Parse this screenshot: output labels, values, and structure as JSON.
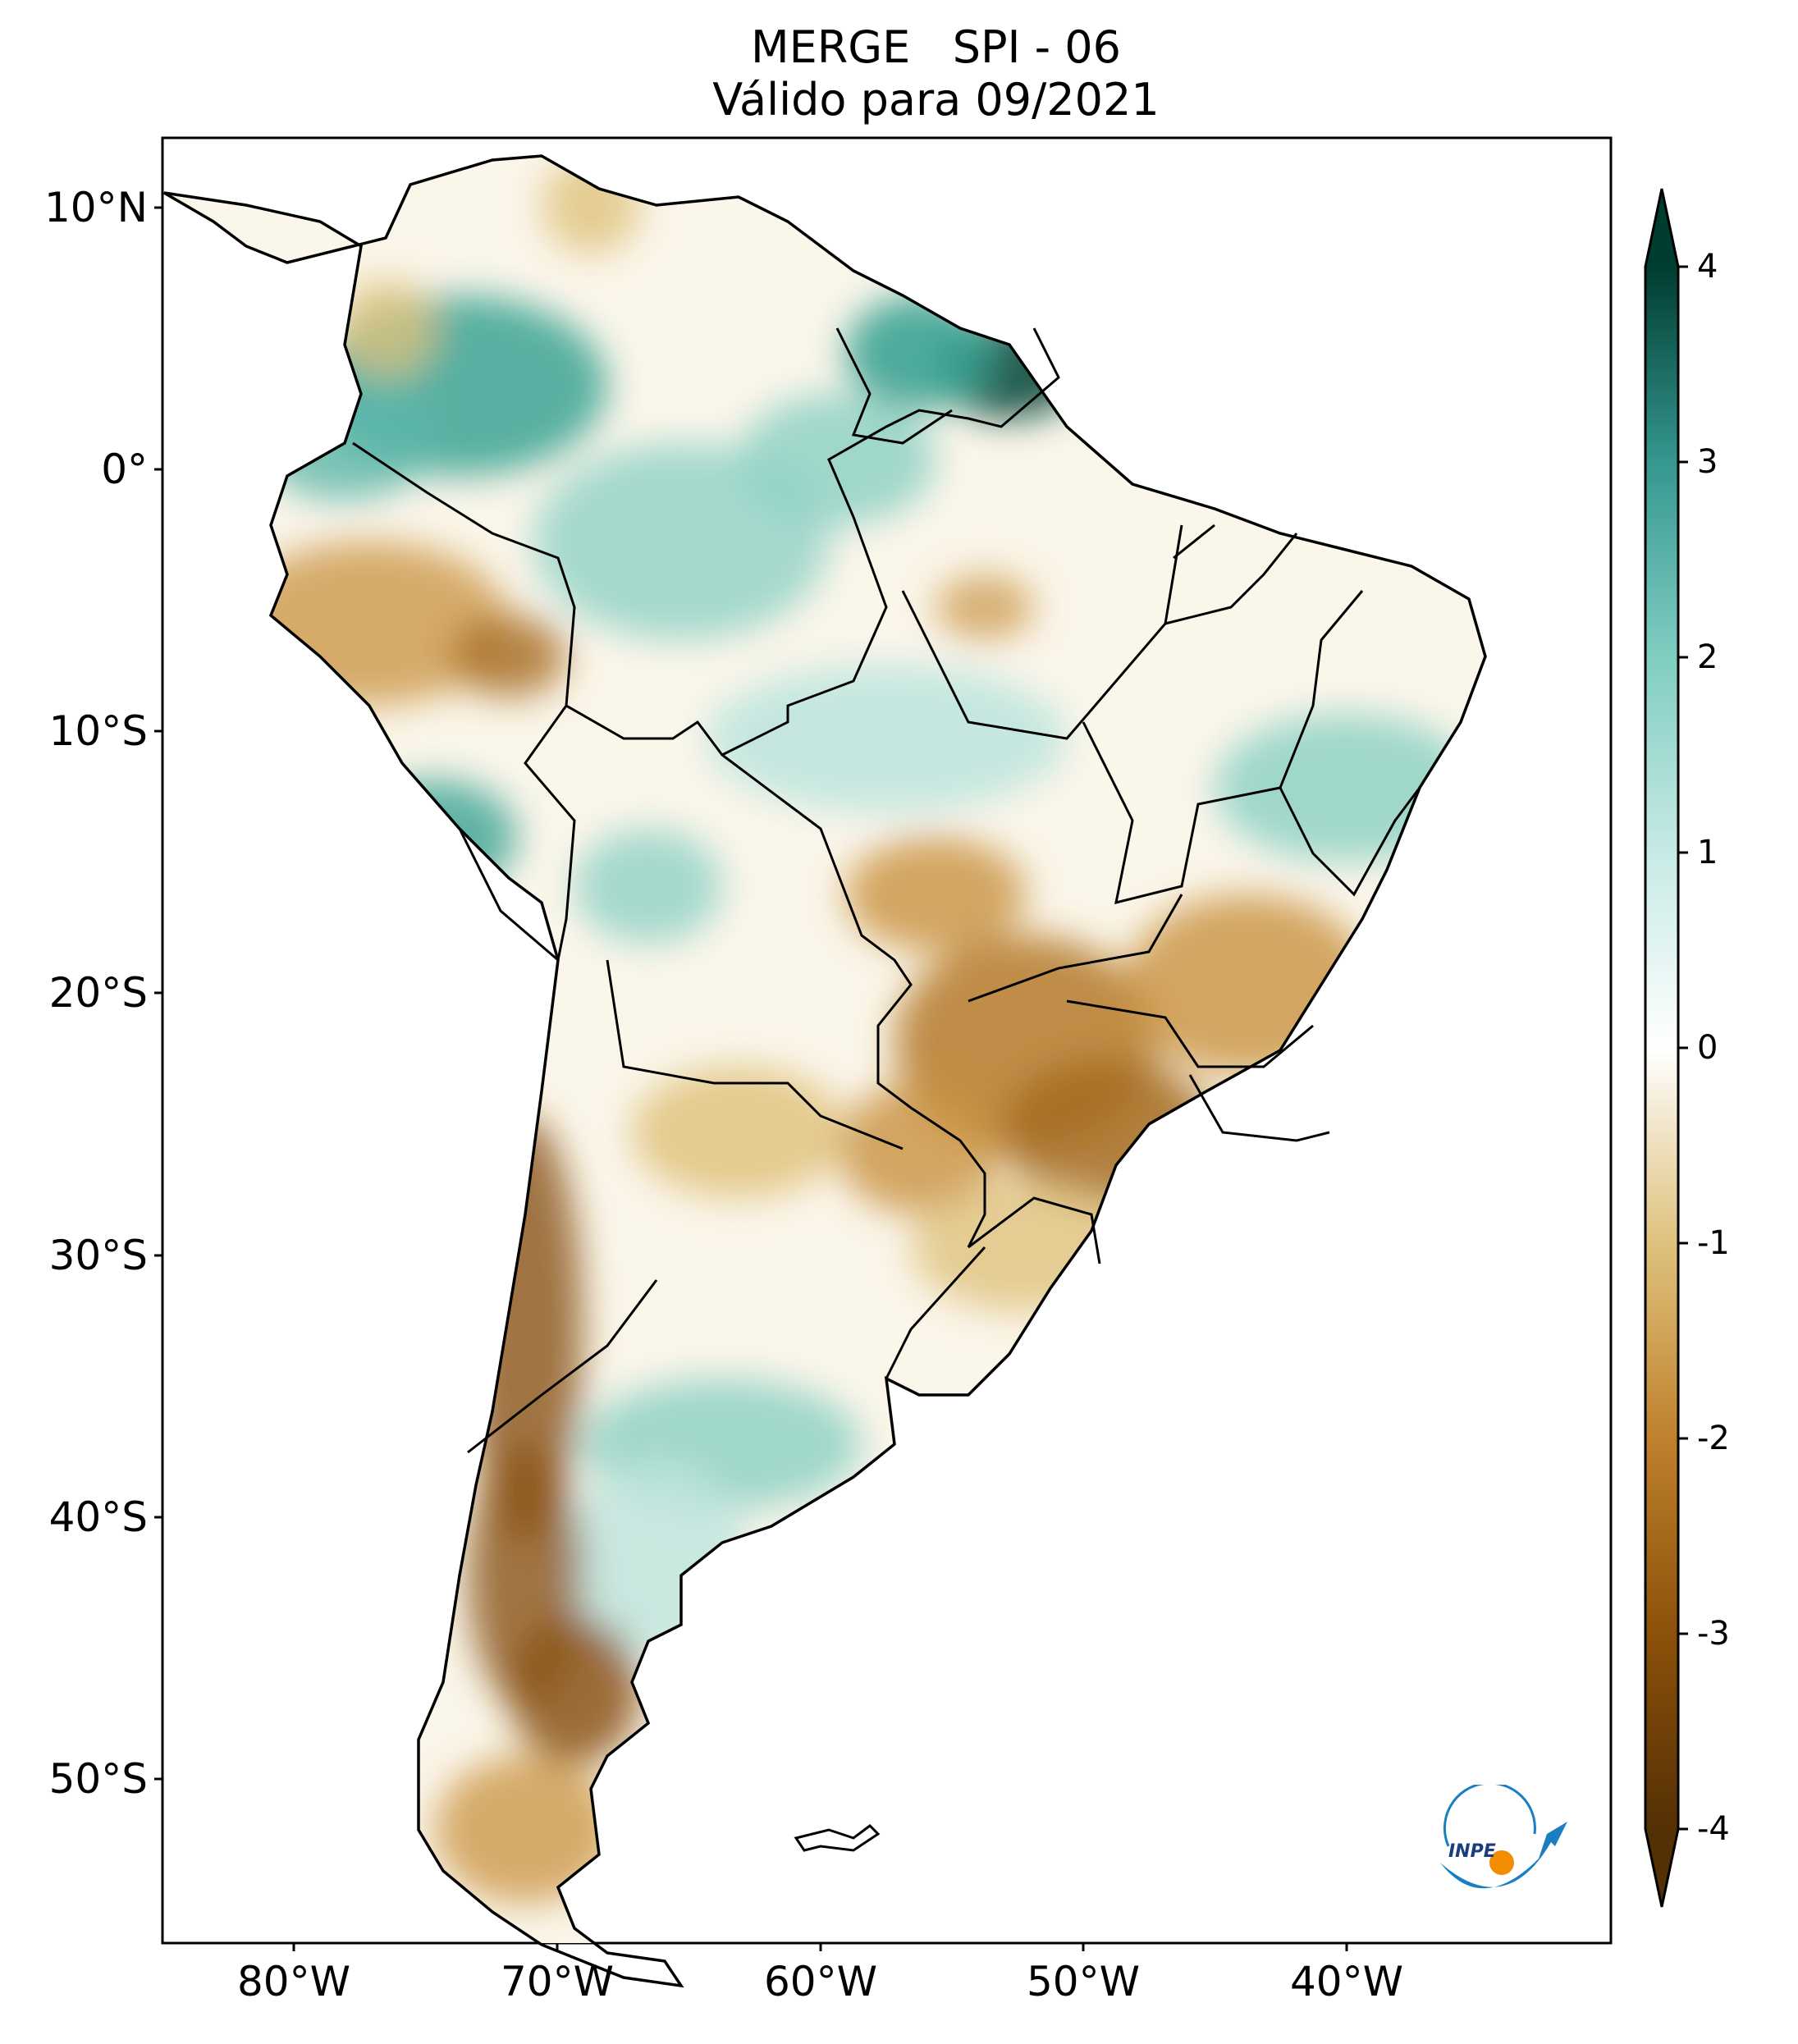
{
  "title": {
    "line1": "MERGE   SPI - 06",
    "line2": "Válido para 09/2021"
  },
  "map": {
    "lat_axis_labels": [
      "10°N",
      "0°",
      "10°S",
      "20°S",
      "30°S",
      "40°S",
      "50°S"
    ],
    "lon_axis_labels": [
      "80°W",
      "70°W",
      "60°W",
      "50°W",
      "40°W"
    ],
    "lon_range": [
      -85,
      -30
    ],
    "lat_range": [
      -56,
      13
    ],
    "colors": {
      "very_wet": "#0a4d40",
      "wet": "#3aa394",
      "slightly_wet": "#bfe5de",
      "neutral": "#ffffff",
      "slightly_dry": "#f0dcb0",
      "dry": "#c8913e",
      "very_dry": "#8a5416"
    }
  },
  "colorbar": {
    "tick_labels": [
      "4",
      "3",
      "2",
      "1",
      "0",
      "-1",
      "-2",
      "-3",
      "-4"
    ],
    "min": -4,
    "max": 4
  },
  "logo": {
    "text": "INPE"
  }
}
